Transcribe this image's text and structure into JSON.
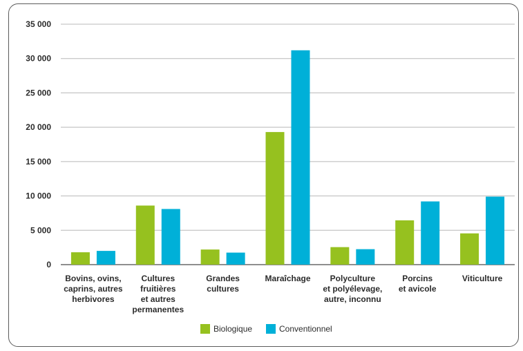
{
  "chart_data": {
    "type": "bar",
    "title": "",
    "xlabel": "",
    "ylabel": "",
    "ylim": [
      0,
      35000
    ],
    "y_ticks": [
      "0",
      "5 000",
      "10 000",
      "15 000",
      "20 000",
      "25 000",
      "30 000",
      "35 000"
    ],
    "grid": true,
    "legend_position": "bottom",
    "categories": [
      [
        "Bovins, ovins,",
        "caprins, autres",
        "herbivores"
      ],
      [
        "Cultures",
        "fruitières",
        "et autres",
        "permanentes"
      ],
      [
        "Grandes",
        "cultures"
      ],
      [
        "Maraîchage"
      ],
      [
        "Polyculture",
        "et polyélevage,",
        "autre, inconnu"
      ],
      [
        "Porcins",
        "et avicole"
      ],
      [
        "Viticulture"
      ]
    ],
    "series": [
      {
        "name": "Biologique",
        "color": "#96c11f",
        "values": [
          1800,
          8600,
          2200,
          19300,
          2550,
          6450,
          4550
        ]
      },
      {
        "name": "Conventionnel",
        "color": "#00b0d8",
        "values": [
          2000,
          8100,
          1750,
          31200,
          2250,
          9200,
          9900
        ]
      }
    ]
  }
}
